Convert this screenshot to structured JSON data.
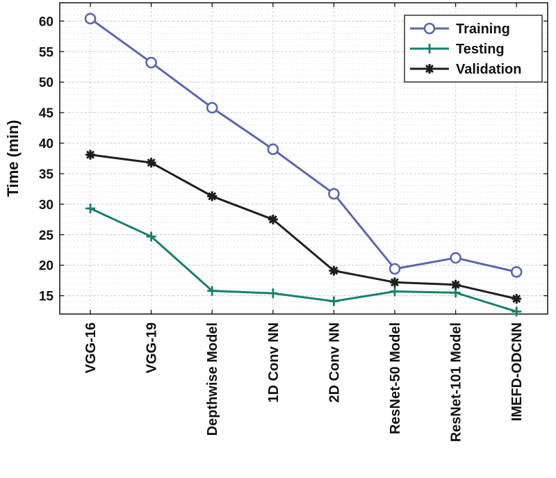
{
  "chart_data": {
    "type": "line",
    "title": "",
    "xlabel": "",
    "ylabel": "Time (min)",
    "ylim": [
      12,
      63
    ],
    "yticks": [
      15,
      20,
      25,
      30,
      35,
      40,
      45,
      50,
      55,
      60
    ],
    "grid": true,
    "legend_position": "top-right",
    "categories": [
      "VGG-16",
      "VGG-19",
      "Depthwise Model",
      "1D Conv NN",
      "2D Conv NN",
      "ResNet-50 Model",
      "ResNet-101 Model",
      "IMEFD-ODCNN"
    ],
    "series": [
      {
        "name": "Training",
        "color": "#5a66b0",
        "marker": "circle",
        "values": [
          60.4,
          53.2,
          45.8,
          39.0,
          31.7,
          19.4,
          21.2,
          18.9
        ]
      },
      {
        "name": "Testing",
        "color": "#16806c",
        "marker": "plus",
        "values": [
          29.3,
          24.7,
          15.8,
          15.4,
          14.1,
          15.7,
          15.5,
          12.4
        ]
      },
      {
        "name": "Validation",
        "color": "#1c1f1d",
        "marker": "asterisk",
        "values": [
          38.1,
          36.8,
          31.3,
          27.5,
          19.1,
          17.2,
          16.8,
          14.5
        ]
      }
    ]
  }
}
